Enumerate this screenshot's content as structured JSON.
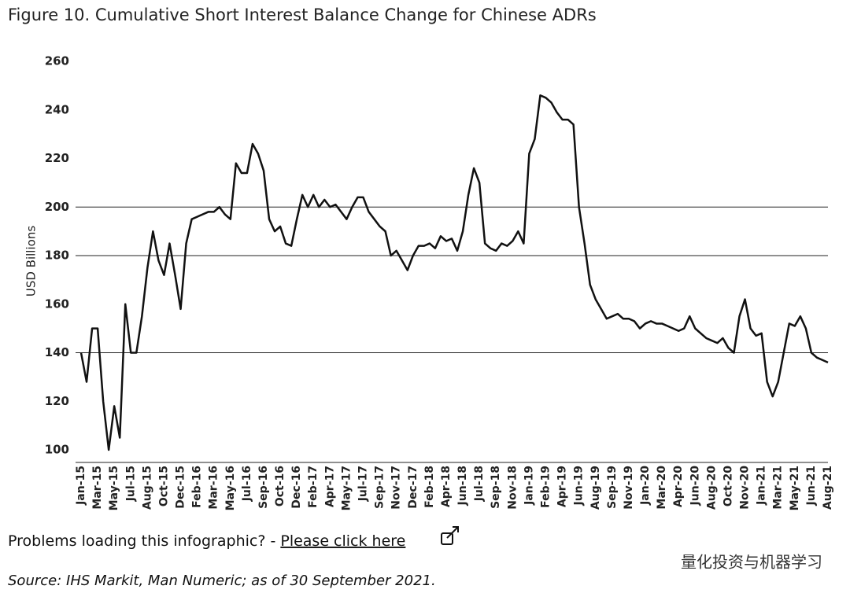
{
  "chart_data": {
    "type": "line",
    "title": "Figure 10. Cumulative Short Interest Balance Change for Chinese ADRs",
    "y_label": "USD Billions",
    "categories": [
      "Jan-15",
      null,
      null,
      "Mar-15",
      null,
      null,
      "May-15",
      null,
      null,
      "Jul-15",
      null,
      null,
      "Aug-15",
      null,
      null,
      "Oct-15",
      null,
      null,
      "Dec-15",
      null,
      null,
      "Feb-16",
      null,
      null,
      "Mar-16",
      null,
      null,
      "May-16",
      null,
      null,
      "Jul-16",
      null,
      null,
      "Sep-16",
      null,
      null,
      "Oct-16",
      null,
      null,
      "Dec-16",
      null,
      null,
      "Feb-17",
      null,
      null,
      "Apr-17",
      null,
      null,
      "May-17",
      null,
      null,
      "Jul-17",
      null,
      null,
      "Sep-17",
      null,
      null,
      "Nov-17",
      null,
      null,
      "Dec-17",
      null,
      null,
      "Feb-18",
      null,
      null,
      "Apr-18",
      null,
      null,
      "Jun-18",
      null,
      null,
      "Jul-18",
      null,
      null,
      "Sep-18",
      null,
      null,
      "Nov-18",
      null,
      null,
      "Jan-19",
      null,
      null,
      "Feb-19",
      null,
      null,
      "Apr-19",
      null,
      null,
      "Jun-19",
      null,
      null,
      "Aug-19",
      null,
      null,
      "Sep-19",
      null,
      null,
      "Nov-19",
      null,
      null,
      "Jan-20",
      null,
      null,
      "Mar-20",
      null,
      null,
      "Apr-20",
      null,
      null,
      "Jun-20",
      null,
      null,
      "Aug-20",
      null,
      null,
      "Oct-20",
      null,
      null,
      "Nov-20",
      null,
      null,
      "Jan-21",
      null,
      null,
      "Mar-21",
      null,
      null,
      "May-21",
      null,
      null,
      "Jun-21",
      null,
      null,
      "Aug-21"
    ],
    "values": [
      140,
      128,
      150,
      150,
      120,
      100,
      118,
      105,
      160,
      140,
      140,
      155,
      175,
      190,
      178,
      172,
      185,
      172,
      158,
      185,
      195,
      196,
      197,
      198,
      198,
      200,
      197,
      195,
      218,
      214,
      214,
      226,
      222,
      215,
      195,
      190,
      192,
      185,
      184,
      195,
      205,
      200,
      205,
      200,
      203,
      200,
      201,
      198,
      195,
      200,
      204,
      204,
      198,
      195,
      192,
      190,
      180,
      182,
      178,
      174,
      180,
      184,
      184,
      185,
      183,
      188,
      186,
      187,
      182,
      190,
      205,
      216,
      210,
      185,
      183,
      182,
      185,
      184,
      186,
      190,
      185,
      222,
      228,
      246,
      245,
      243,
      239,
      236,
      236,
      234,
      200,
      185,
      168,
      162,
      158,
      154,
      155,
      156,
      154,
      154,
      153,
      150,
      152,
      153,
      152,
      152,
      151,
      150,
      149,
      150,
      155,
      150,
      148,
      146,
      145,
      144,
      146,
      142,
      140,
      155,
      162,
      150,
      147,
      148,
      128,
      122,
      128,
      140,
      152,
      151,
      155,
      150,
      140,
      138,
      137,
      136
    ],
    "color": "#111111",
    "ylim": [
      100,
      260
    ],
    "yticks": [
      100,
      120,
      140,
      160,
      180,
      200,
      220,
      240,
      260
    ],
    "gridlines": [
      140,
      180,
      200
    ]
  },
  "note": {
    "text": "Problems loading this infographic? - ",
    "link": "Please click here"
  },
  "watermark": "量化投资与机器学习",
  "source": "Source: IHS Markit, Man Numeric; as of 30 September 2021."
}
